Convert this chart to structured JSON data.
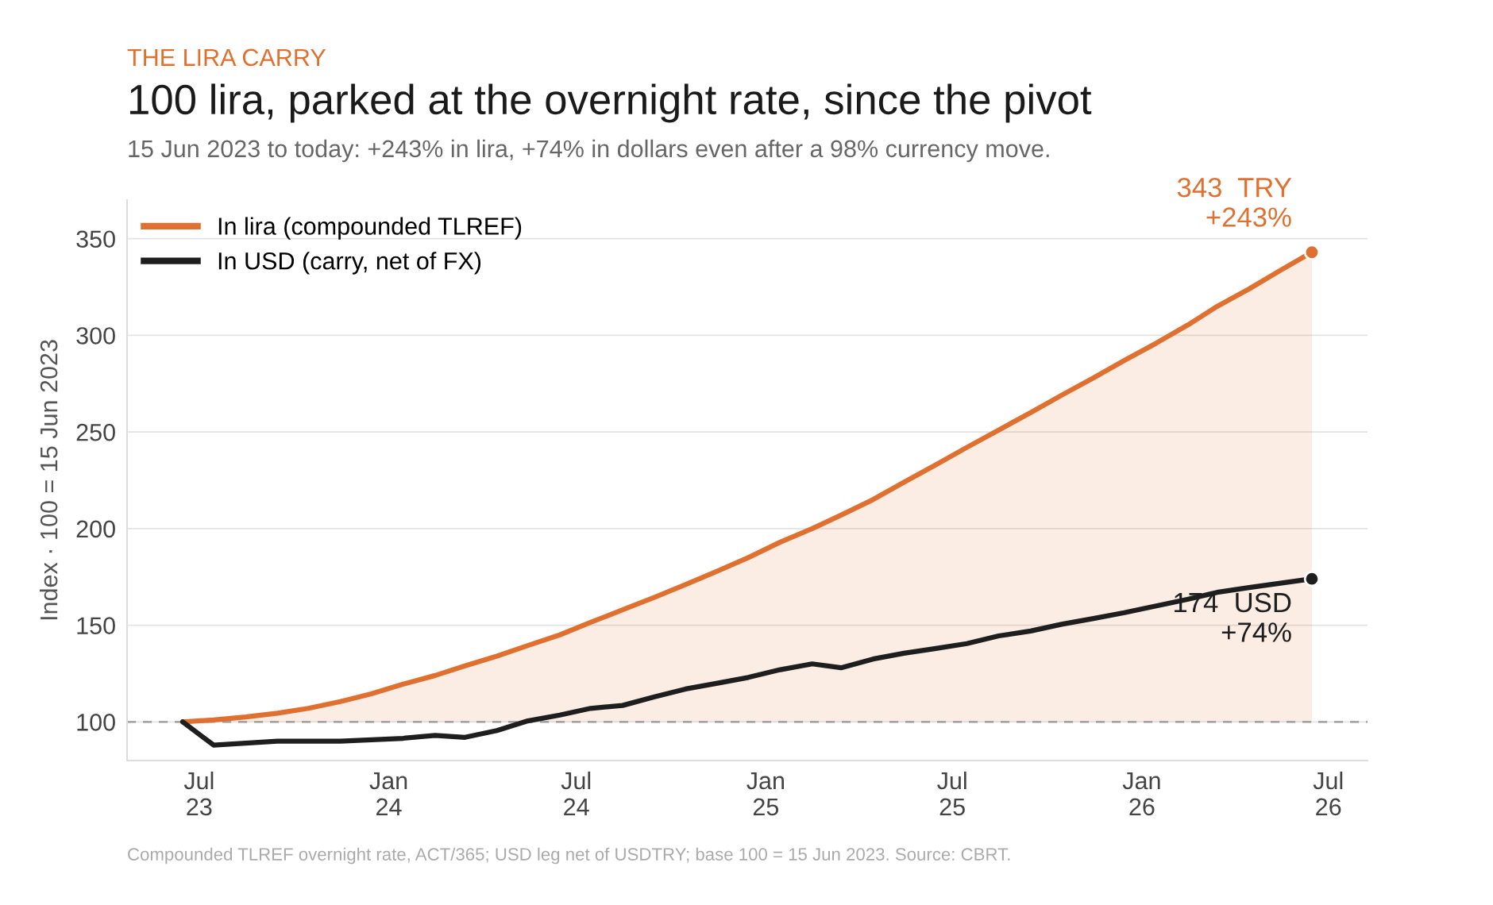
{
  "chart_data": {
    "type": "line",
    "subtitle": "THE LIRA CARRY",
    "title": "100 lira, parked at the overnight rate, since the pivot",
    "annotations": [
      "15 Jun 2023 to today: +243% in lira, +74% in dollars even after a 98% currency move.",
      {
        "text": "343  TRY\n+243%",
        "x": "2026-06-15",
        "y": 343
      },
      {
        "text": "174  USD\n+74%",
        "x": "2026-06-15",
        "y": 174
      },
      "Compounded TLREF overnight rate, ACT/365; USD leg net of USDTRY; base 100 = 15 Jun 2023. Source: CBRT."
    ],
    "ylabel": "Index · 100 = 15 Jun 2023",
    "series": [
      {
        "name": "In lira (compounded TLREF)",
        "color": "#e07030",
        "type": "area",
        "x": [
          "2023-06-15",
          "2023-07-15",
          "2023-08-15",
          "2023-09-15",
          "2023-10-15",
          "2023-11-15",
          "2023-12-15",
          "2024-01-15",
          "2024-02-15",
          "2024-03-15",
          "2024-04-15",
          "2024-05-15",
          "2024-06-15",
          "2024-07-15",
          "2024-08-15",
          "2024-09-15",
          "2024-10-15",
          "2024-11-15",
          "2024-12-15",
          "2025-01-15",
          "2025-02-15",
          "2025-03-15",
          "2025-04-15",
          "2025-05-15",
          "2025-06-15",
          "2025-07-15",
          "2025-08-15",
          "2025-09-15",
          "2025-10-15",
          "2025-11-15",
          "2025-12-15",
          "2026-01-15",
          "2026-02-15",
          "2026-03-15",
          "2026-04-15",
          "2026-05-15",
          "2026-06-15"
        ],
        "values": [
          100,
          101,
          102.5,
          104.5,
          107,
          110.5,
          114.5,
          119.5,
          124,
          129,
          134,
          139.5,
          145,
          151.5,
          158,
          164.5,
          171,
          178,
          185,
          193,
          200,
          207,
          215,
          224,
          233,
          242,
          251,
          260,
          269,
          278,
          287,
          296,
          305.5,
          315,
          324,
          333.5,
          343
        ]
      },
      {
        "name": "In USD (carry, net of FX)",
        "color": "#1e1e1e",
        "x": [
          "2023-06-15",
          "2023-07-15",
          "2023-09-15",
          "2023-11-15",
          "2024-01-15",
          "2024-02-15",
          "2024-03-15",
          "2024-04-15",
          "2024-05-15",
          "2024-06-15",
          "2024-07-15",
          "2024-08-15",
          "2024-09-15",
          "2024-10-15",
          "2024-11-15",
          "2024-12-15",
          "2025-01-15",
          "2025-02-15",
          "2025-03-15",
          "2025-04-15",
          "2025-05-15",
          "2025-06-15",
          "2025-07-15",
          "2025-08-15",
          "2025-09-15",
          "2025-10-15",
          "2025-11-15",
          "2025-12-15",
          "2026-01-15",
          "2026-02-15",
          "2026-03-15",
          "2026-04-15",
          "2026-06-15"
        ],
        "values": [
          100,
          88,
          90,
          90,
          91.5,
          93,
          92,
          95.5,
          100.5,
          103.5,
          107,
          108.5,
          113,
          117,
          120,
          123,
          127,
          130,
          128,
          132.5,
          135.5,
          138,
          140.5,
          144.5,
          147,
          150.5,
          153.5,
          156.5,
          160,
          163.5,
          167,
          169.5,
          174
        ]
      },
      {
        "type": "scatter",
        "color": "#e07030",
        "x": [
          "2026-06-15"
        ],
        "values": [
          343
        ]
      },
      {
        "type": "scatter",
        "color": "#1e1e1e",
        "x": [
          "2026-06-15"
        ],
        "values": [
          174
        ]
      }
    ],
    "xlim": [
      "2023-04-22",
      "2026-08-08"
    ],
    "xticks": [
      {
        "value": "2023-07-01",
        "label": "Jul\n23"
      },
      {
        "value": "2024-01-01",
        "label": "Jan\n24"
      },
      {
        "value": "2024-07-01",
        "label": "Jul\n24"
      },
      {
        "value": "2025-01-01",
        "label": "Jan\n25"
      },
      {
        "value": "2025-07-01",
        "label": "Jul\n25"
      },
      {
        "value": "2026-01-01",
        "label": "Jan\n26"
      },
      {
        "value": "2026-07-01",
        "label": "Jul\n26"
      }
    ],
    "ylim": [
      80,
      370
    ],
    "yticks": [
      100,
      150,
      200,
      250,
      300,
      350
    ],
    "ref_lines": [
      {
        "axis": "y",
        "value": 100,
        "color": "#999999",
        "line_style": "dashed"
      }
    ],
    "grid": "y",
    "legend": "top left"
  }
}
